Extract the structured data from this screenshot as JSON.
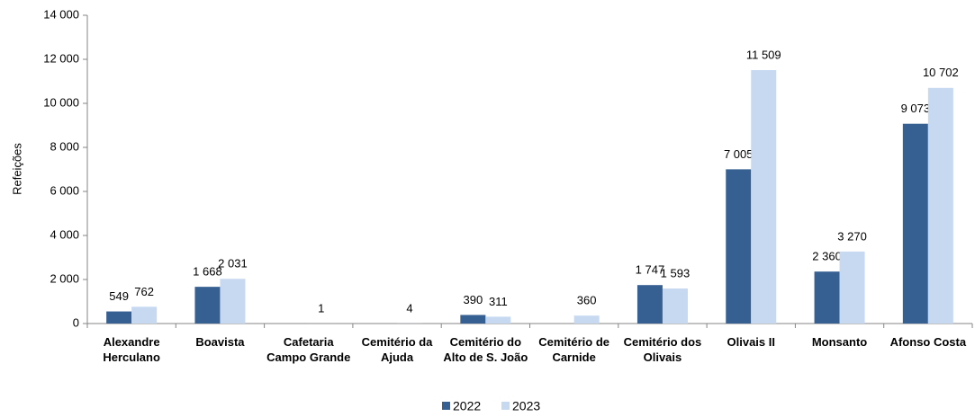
{
  "chart_data": {
    "type": "bar",
    "y_label": "Refeições",
    "categories": [
      "Alexandre Herculano",
      "Boavista",
      "Cafetaria Campo Grande",
      "Cemitério da Ajuda",
      "Cemitério do Alto de S. João",
      "Cemitério de Carnide",
      "Cemitério dos Olivais",
      "Olivais II",
      "Monsanto",
      "Afonso Costa"
    ],
    "series": [
      {
        "name": "2022",
        "color": "#376092",
        "values": [
          549,
          1668,
          null,
          null,
          390,
          null,
          1747,
          7005,
          2360,
          9073
        ],
        "value_labels": [
          "549",
          "1 668",
          null,
          null,
          "390",
          null,
          "1 747",
          "7 005",
          "2 360",
          "9 073"
        ]
      },
      {
        "name": "2023",
        "color": "#c6d9f1",
        "values": [
          762,
          2031,
          1,
          4,
          311,
          360,
          1593,
          11509,
          3270,
          10702
        ],
        "value_labels": [
          "762",
          "2 031",
          "1",
          "4",
          "311",
          "360",
          "1 593",
          "11 509",
          "3 270",
          "10 702"
        ]
      }
    ],
    "ylim": [
      0,
      14000
    ],
    "yticks": [
      0,
      {
        "value": 2000,
        "label": "2 000"
      },
      {
        "value": 4000,
        "label": "4 000"
      },
      {
        "value": 6000,
        "label": "6 000"
      },
      {
        "value": 8000,
        "label": "8 000"
      },
      {
        "value": 10000,
        "label": "10 000"
      },
      {
        "value": 12000,
        "label": "12 000"
      },
      {
        "value": 14000,
        "label": "14 000"
      }
    ],
    "grid": false,
    "legend": "bottom"
  }
}
